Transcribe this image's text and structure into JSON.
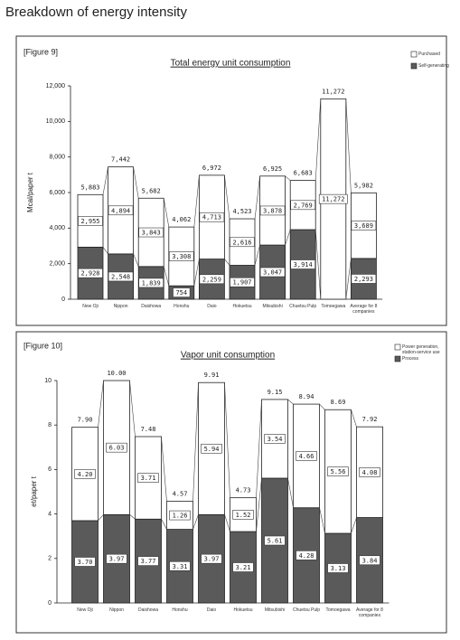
{
  "title": "Breakdown of energy intensity",
  "chart_data": [
    {
      "type": "bar",
      "stacked": true,
      "figure_label": "[Figure 9]",
      "title": "Total energy unit consumption",
      "y_label": "Mcal/paper t",
      "categories": [
        "New Oji",
        "Nippon",
        "Daishowa",
        "Honshu",
        "Daio",
        "Hokuetsu",
        "Mitsubishi",
        "Chuetsu Pulp",
        "Tomoegawa",
        "Average for 8 companies"
      ],
      "series": [
        {
          "name": "Self-generating",
          "color": "#5a5a5a",
          "values": [
            2928,
            2548,
            1839,
            754,
            2259,
            1907,
            3047,
            3914,
            null,
            2293
          ],
          "value_labels": [
            "2,928",
            "2,548",
            "1,839",
            "754",
            "2,259",
            "1,907",
            "3,047",
            "3,914",
            null,
            "2,293"
          ]
        },
        {
          "name": "Purchased",
          "color": "#ffffff",
          "values": [
            2955,
            4894,
            3843,
            3308,
            4713,
            2616,
            3878,
            2769,
            11272,
            3689
          ],
          "value_labels": [
            "2,955",
            "4,894",
            "3,843",
            "3,308",
            "4,713",
            "2,616",
            "3,878",
            "2,769",
            "11,272",
            "3,689"
          ]
        }
      ],
      "totals": [
        5883,
        7442,
        5682,
        4062,
        6972,
        4523,
        6925,
        6683,
        11272,
        5982
      ],
      "total_labels": [
        "5,883",
        "7,442",
        "5,682",
        "4,062",
        "6,972",
        "4,523",
        "6,925",
        "6,683",
        "11,272",
        "5,982"
      ],
      "ylim": [
        0,
        12000
      ],
      "yticks": [
        0,
        {
          "value": 2000,
          "label": "2,000"
        },
        {
          "value": 4000,
          "label": "4,000"
        },
        {
          "value": 6000,
          "label": "6,000"
        },
        {
          "value": 8000,
          "label": "8,000"
        },
        {
          "value": 10000,
          "label": "10,000"
        },
        {
          "value": 12000,
          "label": "12,000"
        }
      ],
      "grid": false,
      "legend": "upper right"
    },
    {
      "type": "bar",
      "stacked": true,
      "figure_label": "[Figure 10]",
      "title": "Vapor unit consumption",
      "y_label": "et/paper t",
      "categories": [
        "New Oji",
        "Nippon",
        "Daishowa",
        "Honshu",
        "Daio",
        "Hokuetsu",
        "Mitsubishi",
        "Chuetsu Pulp",
        "Tomoegawa",
        "Average for 8 companies"
      ],
      "series": [
        {
          "name": "Process",
          "color": "#5a5a5a",
          "values": [
            3.7,
            3.97,
            3.77,
            3.31,
            3.97,
            3.21,
            5.61,
            4.28,
            3.13,
            3.84
          ],
          "value_labels": [
            "3.70",
            "3.97",
            "3.77",
            "3.31",
            "3.97",
            "3.21",
            "5.61",
            "4.28",
            "3.13",
            "3.84"
          ]
        },
        {
          "name": "Power generation, station-service use",
          "color": "#ffffff",
          "values": [
            4.2,
            6.03,
            3.71,
            1.26,
            5.94,
            1.52,
            3.54,
            4.66,
            5.56,
            4.08
          ],
          "value_labels": [
            "4.20",
            "6.03",
            "3.71",
            "1.26",
            "5.94",
            "1.52",
            "3.54",
            "4.66",
            "5.56",
            "4.08"
          ]
        }
      ],
      "totals": [
        7.9,
        10,
        7.48,
        4.57,
        9.91,
        4.73,
        9.15,
        8.94,
        8.69,
        7.92
      ],
      "total_labels": [
        "7.90",
        "10.00",
        "7.48",
        "4.57",
        "9.91",
        "4.73",
        "9.15",
        "8.94",
        "8.69",
        "7.92"
      ],
      "ylim": [
        0,
        10
      ],
      "yticks": [
        0,
        2,
        4,
        6,
        8,
        10
      ],
      "grid": false,
      "legend": "upper right"
    }
  ]
}
